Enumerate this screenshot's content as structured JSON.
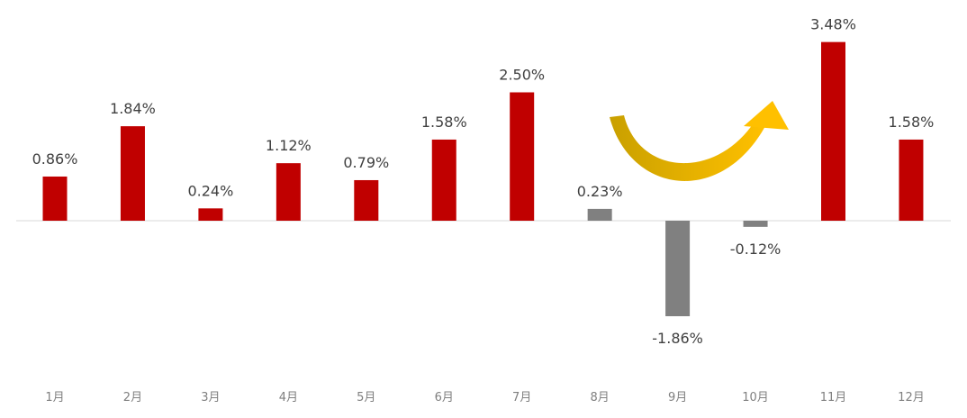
{
  "chart_data": {
    "type": "bar",
    "categories": [
      "1月",
      "2月",
      "3月",
      "4月",
      "5月",
      "6月",
      "7月",
      "8月",
      "9月",
      "10月",
      "11月",
      "12月"
    ],
    "values": [
      0.86,
      1.84,
      0.24,
      1.12,
      0.79,
      1.58,
      2.5,
      0.23,
      -1.86,
      -0.12,
      3.48,
      1.58
    ],
    "value_labels": [
      "0.86%",
      "1.84%",
      "0.24%",
      "1.12%",
      "0.79%",
      "1.58%",
      "2.50%",
      "0.23%",
      "-1.86%",
      "-0.12%",
      "3.48%",
      "1.58%"
    ],
    "colors": [
      "#c00000",
      "#c00000",
      "#c00000",
      "#c00000",
      "#c00000",
      "#c00000",
      "#c00000",
      "#808080",
      "#808080",
      "#808080",
      "#c00000",
      "#c00000"
    ]
  }
}
